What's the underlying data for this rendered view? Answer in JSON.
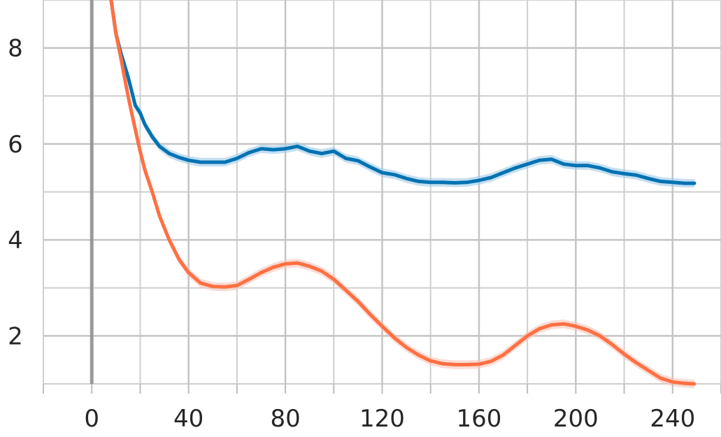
{
  "chart_data": {
    "type": "line",
    "title": "",
    "xlabel": "",
    "ylabel": "",
    "xlim": [
      -20,
      260
    ],
    "ylim": [
      1,
      9
    ],
    "x_ticks": [
      0,
      40,
      80,
      120,
      160,
      200,
      240
    ],
    "x_tick_labels": [
      "0",
      "40",
      "80",
      "120",
      "160",
      "200",
      "240"
    ],
    "y_ticks": [
      2,
      4,
      6,
      8
    ],
    "y_tick_labels": [
      "2",
      "4",
      "6",
      "8"
    ],
    "grid": true,
    "legend": "none",
    "vertical_line_x": 0,
    "series": [
      {
        "color": "#0072b2",
        "band_color": "#9fc9e8",
        "x": [
          8,
          10,
          12,
          15,
          18,
          20,
          22,
          25,
          28,
          32,
          36,
          40,
          45,
          50,
          55,
          60,
          65,
          70,
          75,
          80,
          85,
          90,
          95,
          100,
          105,
          110,
          115,
          120,
          125,
          130,
          135,
          140,
          145,
          150,
          155,
          160,
          165,
          170,
          175,
          180,
          185,
          190,
          195,
          200,
          205,
          210,
          215,
          220,
          225,
          230,
          235,
          240,
          245,
          249
        ],
        "y": [
          9.0,
          8.3,
          7.9,
          7.4,
          6.8,
          6.65,
          6.4,
          6.15,
          5.95,
          5.8,
          5.72,
          5.66,
          5.62,
          5.62,
          5.62,
          5.7,
          5.82,
          5.9,
          5.88,
          5.9,
          5.95,
          5.85,
          5.8,
          5.85,
          5.7,
          5.65,
          5.52,
          5.4,
          5.36,
          5.28,
          5.22,
          5.2,
          5.2,
          5.19,
          5.2,
          5.24,
          5.3,
          5.4,
          5.5,
          5.58,
          5.66,
          5.68,
          5.58,
          5.55,
          5.55,
          5.5,
          5.42,
          5.38,
          5.35,
          5.28,
          5.22,
          5.2,
          5.18,
          5.18
        ]
      },
      {
        "color": "#ff7043",
        "band_color": "#f7c4b8",
        "x": [
          8,
          10,
          12,
          15,
          18,
          20,
          22,
          25,
          28,
          32,
          36,
          40,
          45,
          50,
          55,
          60,
          65,
          70,
          75,
          80,
          85,
          90,
          95,
          100,
          105,
          110,
          115,
          120,
          125,
          130,
          135,
          140,
          145,
          150,
          155,
          160,
          165,
          170,
          175,
          180,
          185,
          190,
          195,
          200,
          205,
          210,
          215,
          220,
          225,
          230,
          235,
          240,
          245,
          249
        ],
        "y": [
          9.0,
          8.3,
          7.8,
          7.0,
          6.3,
          5.85,
          5.45,
          5.0,
          4.5,
          4.0,
          3.6,
          3.32,
          3.1,
          3.03,
          3.02,
          3.05,
          3.18,
          3.32,
          3.43,
          3.5,
          3.52,
          3.45,
          3.35,
          3.18,
          2.95,
          2.72,
          2.45,
          2.2,
          1.96,
          1.76,
          1.6,
          1.48,
          1.42,
          1.4,
          1.4,
          1.41,
          1.47,
          1.6,
          1.8,
          2.0,
          2.15,
          2.23,
          2.25,
          2.2,
          2.12,
          2.0,
          1.82,
          1.62,
          1.44,
          1.28,
          1.12,
          1.04,
          1.01,
          1.0
        ]
      }
    ]
  }
}
